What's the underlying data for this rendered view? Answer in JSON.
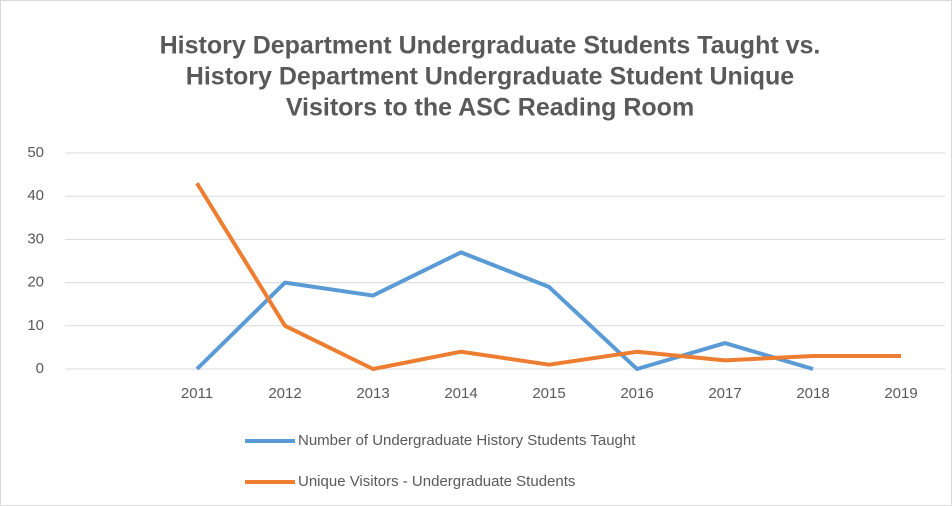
{
  "chart_data": {
    "type": "line",
    "title": [
      "History Department Undergraduate Students Taught vs.",
      "History Department Undergraduate Student Unique",
      "Visitors to the ASC Reading Room"
    ],
    "categories": [
      null,
      "2011",
      "2012",
      "2013",
      "2014",
      "2015",
      "2016",
      "2017",
      "2018",
      "2019"
    ],
    "series": [
      {
        "name": "Number of Undergraduate History Students Taught",
        "color": "#5b9bd5",
        "values": [
          null,
          0,
          20,
          17,
          27,
          19,
          0,
          6,
          0,
          null
        ]
      },
      {
        "name": "Unique Visitors - Undergraduate Students",
        "color": "#ed7d31",
        "values": [
          null,
          43,
          10,
          0,
          4,
          1,
          4,
          2,
          3,
          3
        ]
      }
    ],
    "ylim": [
      0,
      50
    ],
    "yticks": [
      0,
      10,
      20,
      30,
      40,
      50
    ],
    "grid": true,
    "legend": "bottom"
  }
}
